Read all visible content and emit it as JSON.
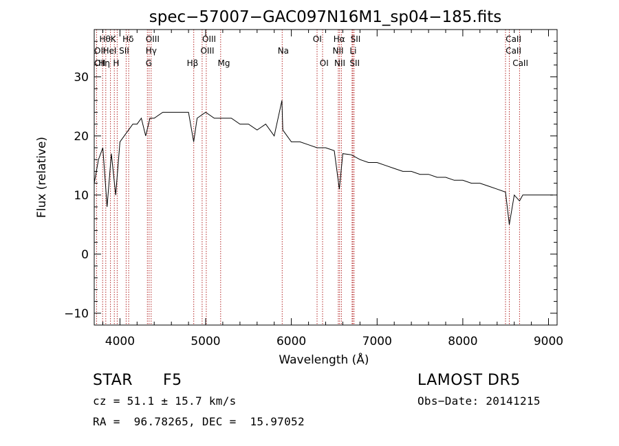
{
  "chart_data": {
    "type": "line",
    "title": "spec−57007−GAC097N16M1_sp04−185.fits",
    "xlabel": "Wavelength (Å)",
    "ylabel": "Flux (relative)",
    "xlim": [
      3700,
      9100
    ],
    "ylim": [
      -12,
      38
    ],
    "xticks": [
      4000,
      5000,
      6000,
      7000,
      8000,
      9000
    ],
    "yticks": [
      -10,
      0,
      10,
      20,
      30
    ],
    "grid": false,
    "line_color": "#000000",
    "marker_color": "#b22222",
    "series": [
      {
        "x": [
          3700,
          3750,
          3800,
          3850,
          3900,
          3950,
          4000,
          4050,
          4100,
          4150,
          4200,
          4250,
          4300,
          4350,
          4400,
          4500,
          4600,
          4700,
          4800,
          4860,
          4900,
          5000,
          5100,
          5200,
          5300,
          5400,
          5500,
          5600,
          5700,
          5800,
          5890,
          5900,
          6000,
          6100,
          6200,
          6300,
          6400,
          6500,
          6560,
          6600,
          6700,
          6800,
          6900,
          7000,
          7100,
          7200,
          7300,
          7400,
          7500,
          7600,
          7700,
          7800,
          7900,
          8000,
          8100,
          8200,
          8300,
          8400,
          8498,
          8542,
          8600,
          8662,
          8700,
          8800,
          8900,
          9000,
          9050
        ],
        "y": [
          12,
          16,
          18,
          8,
          17,
          10,
          19,
          20,
          21,
          22,
          22,
          23,
          20,
          23,
          23,
          24,
          24,
          24,
          24,
          19,
          23,
          24,
          23,
          23,
          23,
          22,
          22,
          21,
          22,
          20,
          26,
          21,
          19,
          19,
          18.5,
          18,
          18,
          17.5,
          11,
          17,
          16.8,
          16,
          15.5,
          15.5,
          15,
          14.5,
          14,
          14,
          13.5,
          13.5,
          13,
          13,
          12.5,
          12.5,
          12,
          12,
          11.5,
          11,
          10.5,
          5,
          10,
          9,
          10,
          10,
          10,
          10,
          10
        ]
      }
    ],
    "markers": [
      {
        "name": "OII",
        "x": 3727
      },
      {
        "name": "Hθ",
        "x": 3798
      },
      {
        "name": "Hη",
        "x": 3835
      },
      {
        "name": "HeI",
        "x": 3889
      },
      {
        "name": "K",
        "x": 3934
      },
      {
        "name": "H",
        "x": 3968
      },
      {
        "name": "SII",
        "x": 4072
      },
      {
        "name": "Hδ",
        "x": 4102
      },
      {
        "name": "OIII",
        "x": 4320
      },
      {
        "name": "Hγ",
        "x": 4340
      },
      {
        "name": "G",
        "x": 4364
      },
      {
        "name": "Hβ",
        "x": 4861
      },
      {
        "name": "OIII",
        "x": 4959
      },
      {
        "name": "OIII",
        "x": 5007
      },
      {
        "name": "Mg",
        "x": 5175
      },
      {
        "name": "Na",
        "x": 5893
      },
      {
        "name": "OI",
        "x": 6300
      },
      {
        "name": "OI",
        "x": 6364
      },
      {
        "name": "NII",
        "x": 6548
      },
      {
        "name": "Hα",
        "x": 6563
      },
      {
        "name": "NII",
        "x": 6584
      },
      {
        "name": "Li",
        "x": 6708
      },
      {
        "name": "SII",
        "x": 6717
      },
      {
        "name": "SII",
        "x": 6731
      },
      {
        "name": "CaII",
        "x": 8498
      },
      {
        "name": "CaII",
        "x": 8542
      },
      {
        "name": "CaII",
        "x": 8662
      }
    ],
    "marker_labels": [
      {
        "text": "Hθ",
        "x": 3760,
        "row": 0
      },
      {
        "text": "K",
        "x": 3890,
        "row": 0
      },
      {
        "text": "Hδ",
        "x": 4030,
        "row": 0
      },
      {
        "text": "OIII",
        "x": 4300,
        "row": 0
      },
      {
        "text": "OIII",
        "x": 4960,
        "row": 0
      },
      {
        "text": "OI",
        "x": 6250,
        "row": 0
      },
      {
        "text": "Hα",
        "x": 6490,
        "row": 0
      },
      {
        "text": "SII",
        "x": 6690,
        "row": 0
      },
      {
        "text": "CaII",
        "x": 8500,
        "row": 0
      },
      {
        "text": "OII",
        "x": 3700,
        "row": 1
      },
      {
        "text": "HeI",
        "x": 3800,
        "row": 1
      },
      {
        "text": "SII",
        "x": 3990,
        "row": 1
      },
      {
        "text": "Hγ",
        "x": 4300,
        "row": 1
      },
      {
        "text": "OIII",
        "x": 4940,
        "row": 1
      },
      {
        "text": "Na",
        "x": 5840,
        "row": 1
      },
      {
        "text": "NII",
        "x": 6480,
        "row": 1
      },
      {
        "text": "Li",
        "x": 6680,
        "row": 1
      },
      {
        "text": "CaII",
        "x": 8500,
        "row": 1
      },
      {
        "text": "OII",
        "x": 3700,
        "row": 2
      },
      {
        "text": "Hη",
        "x": 3750,
        "row": 2
      },
      {
        "text": "H",
        "x": 3920,
        "row": 2
      },
      {
        "text": "G",
        "x": 4300,
        "row": 2
      },
      {
        "text": "Hβ",
        "x": 4780,
        "row": 2
      },
      {
        "text": "Mg",
        "x": 5140,
        "row": 2
      },
      {
        "text": "OI",
        "x": 6330,
        "row": 2
      },
      {
        "text": "NII",
        "x": 6500,
        "row": 2
      },
      {
        "text": "SII",
        "x": 6680,
        "row": 2
      },
      {
        "text": "CaII",
        "x": 8580,
        "row": 2
      }
    ]
  },
  "info": {
    "object_class": "STAR",
    "subclass": "F5",
    "survey": "LAMOST DR5",
    "redshift": "cz = 51.1 ± 15.7 km/s",
    "obs_date": "Obs−Date: 20141215",
    "coords": "RA =  96.78265, DEC =  15.97052"
  }
}
